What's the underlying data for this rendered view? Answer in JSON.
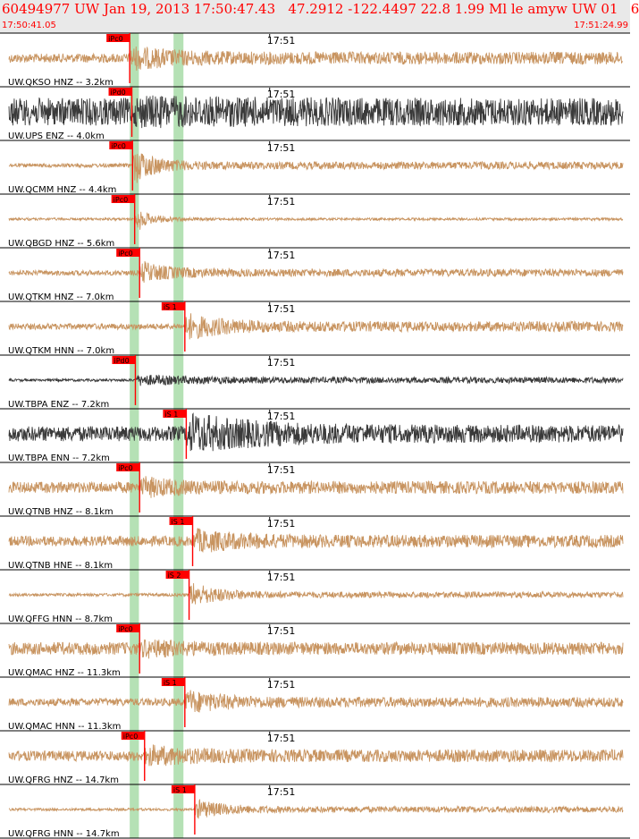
{
  "header": {
    "title": "60494977 UW Jan 19, 2013 17:50:47.43   47.2912 -122.4497 22.8 1.99 Ml le amyw UW 01   6",
    "start_time": "17:50:41.05",
    "end_time": "17:51:24.99"
  },
  "colors": {
    "trace_hn": "#c89460",
    "trace_en": "#3a3a3a",
    "pick": "#ff0000",
    "band": "#a8dca8",
    "text": "#000000"
  },
  "chart_data": {
    "type": "line",
    "title": "60494977 UW Jan 19, 2013 17:50:47.43   47.2912 -122.4497 22.8 1.99 Ml le amyw UW 01   6",
    "x_range_seconds": [
      0,
      43.94
    ],
    "tick_label": "17:51",
    "tick_seconds": 18.95,
    "bands_seconds": [
      [
        9.05,
        9.7
      ],
      [
        12.15,
        12.85
      ]
    ],
    "traces": [
      {
        "label": "UW.QKSO HNZ -- 3.2km",
        "pick": "iPc0",
        "pick_s": 9.05,
        "color": "hn",
        "pre": 0.18,
        "peak": 0.55,
        "coda": 0.25,
        "decay": 12
      },
      {
        "label": "UW.UPS ENZ -- 4.0km",
        "pick": "iPd0",
        "pick_s": 9.2,
        "color": "en",
        "pre": 0.55,
        "peak": 0.7,
        "coda": 0.55,
        "decay": 30
      },
      {
        "label": "UW.QCMM HNZ -- 4.4km",
        "pick": "iPc0",
        "pick_s": 9.25,
        "color": "hn",
        "pre": 0.08,
        "peak": 0.8,
        "coda": 0.15,
        "decay": 6
      },
      {
        "label": "UW.QBGD HNZ -- 5.6km",
        "pick": "iPc0",
        "pick_s": 9.4,
        "color": "hn",
        "pre": 0.05,
        "peak": 0.45,
        "coda": 0.05,
        "decay": 5
      },
      {
        "label": "UW.QTKM HNZ -- 7.0km",
        "pick": "iPc0",
        "pick_s": 9.75,
        "color": "hn",
        "pre": 0.1,
        "peak": 0.5,
        "coda": 0.15,
        "decay": 8
      },
      {
        "label": "UW.QTKM HNN -- 7.0km",
        "pick": "iS 1",
        "pick_s": 12.95,
        "color": "hn",
        "pre": 0.12,
        "peak": 0.6,
        "coda": 0.2,
        "decay": 10
      },
      {
        "label": "UW.TBPA ENZ -- 7.2km",
        "pick": "iPd0",
        "pick_s": 9.45,
        "color": "en",
        "pre": 0.05,
        "peak": 0.25,
        "coda": 0.12,
        "decay": 15
      },
      {
        "label": "UW.TBPA ENN -- 7.2km",
        "pick": "iS 1",
        "pick_s": 13.05,
        "color": "en",
        "pre": 0.3,
        "peak": 0.9,
        "coda": 0.35,
        "decay": 20
      },
      {
        "label": "UW.QTNB HNZ -- 8.1km",
        "pick": "iPc0",
        "pick_s": 9.75,
        "color": "hn",
        "pre": 0.22,
        "peak": 0.5,
        "coda": 0.25,
        "decay": 10
      },
      {
        "label": "UW.QTNB HNE -- 8.1km",
        "pick": "iS 1",
        "pick_s": 13.5,
        "color": "hn",
        "pre": 0.2,
        "peak": 0.55,
        "coda": 0.25,
        "decay": 12
      },
      {
        "label": "UW.QFFG HNN -- 8.7km",
        "pick": "iS 2",
        "pick_s": 13.25,
        "color": "hn",
        "pre": 0.06,
        "peak": 0.55,
        "coda": 0.12,
        "decay": 8
      },
      {
        "label": "UW.QMAC HNZ -- 11.3km",
        "pick": "iPc0",
        "pick_s": 9.75,
        "color": "hn",
        "pre": 0.25,
        "peak": 0.45,
        "coda": 0.25,
        "decay": 12
      },
      {
        "label": "UW.QMAC HNN -- 11.3km",
        "pick": "iS 1",
        "pick_s": 12.95,
        "color": "hn",
        "pre": 0.15,
        "peak": 0.55,
        "coda": 0.2,
        "decay": 10
      },
      {
        "label": "UW.QFRG HNZ -- 14.7km",
        "pick": "iPc0",
        "pick_s": 10.1,
        "color": "hn",
        "pre": 0.2,
        "peak": 0.5,
        "coda": 0.25,
        "decay": 12
      },
      {
        "label": "UW.QFRG HNN -- 14.7km",
        "pick": "iS 1",
        "pick_s": 13.65,
        "color": "hn",
        "pre": 0.05,
        "peak": 0.45,
        "coda": 0.12,
        "decay": 8
      }
    ]
  }
}
